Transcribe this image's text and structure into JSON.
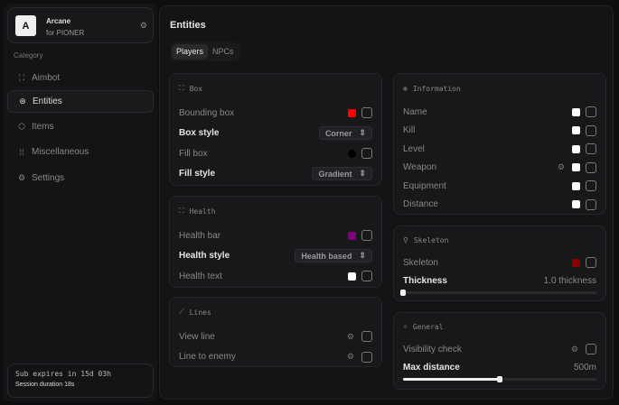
{
  "brand": {
    "logo": "A",
    "name": "Arcane",
    "subtitle": "for PIONER"
  },
  "sidebar": {
    "category_label": "Category",
    "items": [
      {
        "label": "Aimbot",
        "icon": "crosshair-icon"
      },
      {
        "label": "Entities",
        "icon": "scan-face-icon",
        "active": true
      },
      {
        "label": "Items",
        "icon": "package-icon"
      },
      {
        "label": "Miscellaneous",
        "icon": "grid-icon"
      },
      {
        "label": "Settings",
        "icon": "gear-icon"
      }
    ]
  },
  "subscription": {
    "expires": "Sub expires in 15d 03h",
    "session": "Session duration 18s"
  },
  "main": {
    "title": "Entities",
    "tabs": [
      {
        "label": "Players",
        "active": true
      },
      {
        "label": "NPCs"
      }
    ]
  },
  "box": {
    "title": "Box",
    "bounding_box": "Bounding box",
    "bounding_color": "#ff0000",
    "box_style": "Box style",
    "box_style_value": "Corner",
    "fill_box": "Fill box",
    "fill_color": "#000000",
    "fill_style": "Fill style",
    "fill_style_value": "Gradient"
  },
  "health": {
    "title": "Health",
    "bar": "Health bar",
    "bar_color": "#800080",
    "style": "Health style",
    "style_value": "Health based",
    "text": "Health text",
    "text_color": "#ffffff"
  },
  "lines": {
    "title": "Lines",
    "view_line": "View line",
    "line_to_enemy": "Line to enemy"
  },
  "information": {
    "title": "Information",
    "items": [
      {
        "label": "Name",
        "color": "#ffffff"
      },
      {
        "label": "Kill",
        "color": "#ffffff"
      },
      {
        "label": "Level",
        "color": "#ffffff"
      },
      {
        "label": "Weapon",
        "color": "#ffffff",
        "gear": true
      },
      {
        "label": "Equipment",
        "color": "#ffffff"
      },
      {
        "label": "Distance",
        "color": "#ffffff"
      }
    ]
  },
  "skeleton": {
    "title": "Skeleton",
    "label": "Skeleton",
    "color": "#8b0000",
    "thickness_label": "Thickness",
    "thickness_value": "1.0 thickness",
    "thickness_fraction": 0
  },
  "general": {
    "title": "General",
    "visibility": "Visibility check",
    "max_distance": "Max distance",
    "max_distance_value": "500m",
    "max_distance_fraction": 0.5
  }
}
